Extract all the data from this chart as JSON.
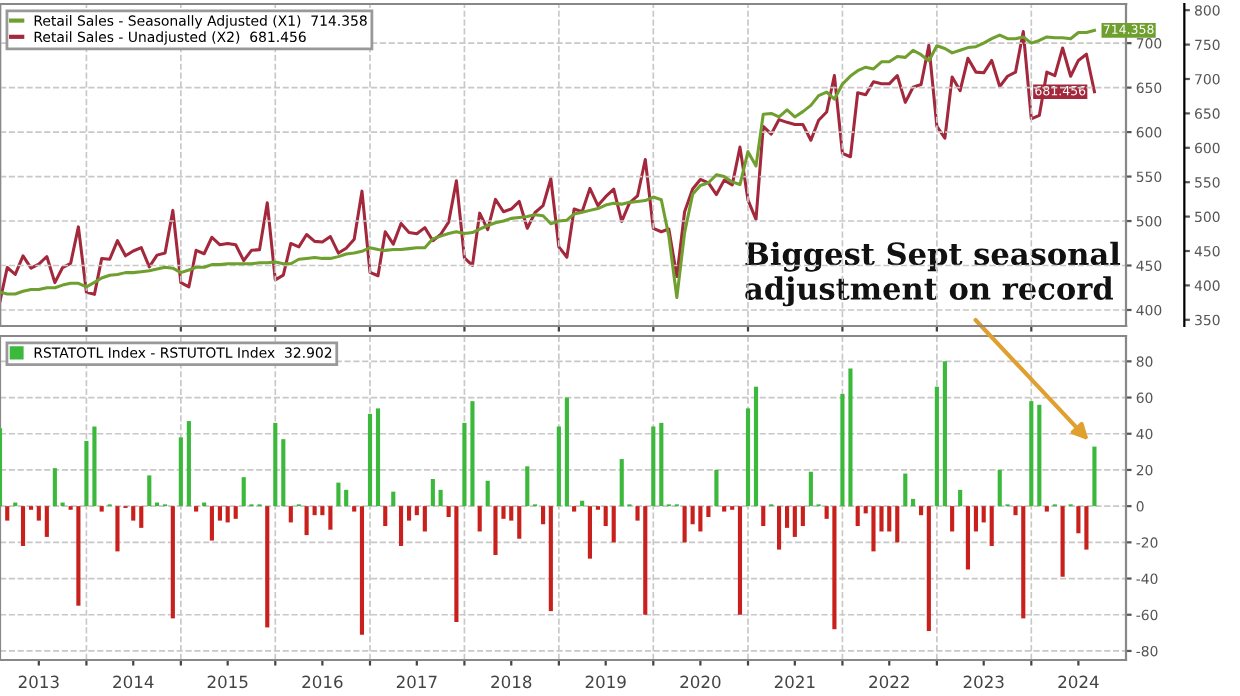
{
  "chart_data": [
    {
      "type": "line",
      "x": [
        "2013-02",
        "2013-03",
        "2013-04",
        "2013-05",
        "2013-06",
        "2013-07",
        "2013-08",
        "2013-09",
        "2013-10",
        "2013-11",
        "2013-12",
        "2014-01",
        "2014-02",
        "2014-03",
        "2014-04",
        "2014-05",
        "2014-06",
        "2014-07",
        "2014-08",
        "2014-09",
        "2014-10",
        "2014-11",
        "2014-12",
        "2015-01",
        "2015-02",
        "2015-03",
        "2015-04",
        "2015-05",
        "2015-06",
        "2015-07",
        "2015-08",
        "2015-09",
        "2015-10",
        "2015-11",
        "2015-12",
        "2016-01",
        "2016-02",
        "2016-03",
        "2016-04",
        "2016-05",
        "2016-06",
        "2016-07",
        "2016-08",
        "2016-09",
        "2016-10",
        "2016-11",
        "2016-12",
        "2017-01",
        "2017-02",
        "2017-03",
        "2017-04",
        "2017-05",
        "2017-06",
        "2017-07",
        "2017-08",
        "2017-09",
        "2017-10",
        "2017-11",
        "2017-12",
        "2018-01",
        "2018-02",
        "2018-03",
        "2018-04",
        "2018-05",
        "2018-06",
        "2018-07",
        "2018-08",
        "2018-09",
        "2018-10",
        "2018-11",
        "2018-12",
        "2019-01",
        "2019-02",
        "2019-03",
        "2019-04",
        "2019-05",
        "2019-06",
        "2019-07",
        "2019-08",
        "2019-09",
        "2019-10",
        "2019-11",
        "2019-12",
        "2020-01",
        "2020-02",
        "2020-03",
        "2020-04",
        "2020-05",
        "2020-06",
        "2020-07",
        "2020-08",
        "2020-09",
        "2020-10",
        "2020-11",
        "2020-12",
        "2021-01",
        "2021-02",
        "2021-03",
        "2021-04",
        "2021-05",
        "2021-06",
        "2021-07",
        "2021-08",
        "2021-09",
        "2021-10",
        "2021-11",
        "2021-12",
        "2022-01",
        "2022-02",
        "2022-03",
        "2022-04",
        "2022-05",
        "2022-06",
        "2022-07",
        "2022-08",
        "2022-09",
        "2022-10",
        "2022-11",
        "2022-12",
        "2023-01",
        "2023-02",
        "2023-03",
        "2023-04",
        "2023-05",
        "2023-06",
        "2023-07",
        "2023-08",
        "2023-09",
        "2023-10",
        "2023-11",
        "2023-12",
        "2024-01",
        "2024-02",
        "2024-03",
        "2024-04",
        "2024-05",
        "2024-06",
        "2024-07",
        "2024-08",
        "2024-09"
      ],
      "series": [
        {
          "name": "Retail Sales - Seasonally Adjusted (X1)  714.358",
          "color": "#6f9f2f",
          "axis": "y",
          "values": [
            420,
            418,
            418,
            421,
            423,
            423,
            425,
            425,
            428,
            430,
            430,
            426,
            431,
            436,
            439,
            440,
            442,
            442,
            443,
            444,
            446,
            448,
            447,
            442,
            445,
            448,
            448,
            451,
            451,
            452,
            452,
            452,
            452,
            453,
            453,
            454,
            452,
            452,
            457,
            458,
            459,
            458,
            458,
            460,
            463,
            464,
            466,
            470,
            468,
            467,
            468,
            468,
            469,
            470,
            470,
            480,
            483,
            486,
            488,
            486,
            487,
            491,
            495,
            498,
            500,
            503,
            504,
            505,
            507,
            506,
            497,
            500,
            501,
            508,
            510,
            512,
            514,
            518,
            520,
            519,
            521,
            522,
            523,
            527,
            524,
            483,
            414,
            487,
            530,
            540,
            543,
            552,
            550,
            544,
            541,
            578,
            562,
            620,
            621,
            617,
            625,
            617,
            623,
            630,
            641,
            645,
            637,
            654,
            663,
            669,
            673,
            671,
            679,
            679,
            685,
            684,
            692,
            687,
            680,
            697,
            694,
            689,
            692,
            695,
            696,
            700,
            705,
            709,
            705,
            705,
            707,
            700,
            703,
            707,
            706,
            706,
            705,
            712,
            712,
            714.358
          ],
          "value_labels": [
            null,
            null,
            null,
            null,
            null,
            null,
            null,
            null,
            null,
            null,
            null,
            null,
            null,
            null,
            null,
            null,
            null,
            null,
            null,
            null,
            null,
            null,
            null,
            null,
            null,
            null,
            null,
            null,
            null,
            null,
            null,
            null,
            null,
            null,
            null,
            null,
            null,
            null,
            null,
            null,
            null,
            null,
            null,
            null,
            null,
            null,
            null,
            null,
            null,
            null,
            null,
            null,
            null,
            null,
            null,
            null,
            null,
            null,
            null,
            null,
            null,
            null,
            null,
            null,
            null,
            null,
            null,
            null,
            null,
            null,
            null,
            null,
            null,
            null,
            null,
            null,
            null,
            null,
            null,
            null,
            null,
            null,
            null,
            null,
            null,
            null,
            null,
            null,
            null,
            null,
            null,
            null,
            null,
            null,
            null,
            null,
            null,
            null,
            null,
            null,
            null,
            null,
            null,
            null,
            null,
            null,
            null,
            null,
            null,
            null,
            null,
            null,
            null,
            null,
            null,
            null,
            null,
            null,
            null,
            null,
            null,
            null,
            null,
            null,
            null,
            null,
            null,
            null,
            null,
            null,
            null,
            null,
            null,
            null,
            null,
            null,
            null,
            null,
            null,
            "714.358"
          ]
        },
        {
          "name": "Retail Sales - Unadjusted (X2)  681.456",
          "color": "#a3283c",
          "axis": "y2",
          "values": [
            377,
            426,
            416,
            443,
            425,
            431,
            442,
            404,
            426,
            432,
            485,
            390,
            387,
            439,
            438,
            465,
            443,
            450,
            455,
            427,
            444,
            447,
            509,
            404,
            398,
            451,
            446,
            470,
            459,
            461,
            459,
            436,
            451,
            452,
            520,
            408,
            415,
            461,
            456,
            474,
            464,
            463,
            471,
            447,
            454,
            467,
            537,
            419,
            414,
            478,
            460,
            490,
            477,
            475,
            484,
            465,
            474,
            492,
            552,
            440,
            429,
            505,
            481,
            525,
            507,
            511,
            522,
            483,
            506,
            516,
            555,
            456,
            441,
            511,
            507,
            541,
            516,
            529,
            540,
            493,
            520,
            530,
            583,
            483,
            478,
            482,
            413,
            507,
            540,
            554,
            549,
            532,
            553,
            546,
            601,
            524,
            496,
            631,
            620,
            641,
            637,
            634,
            634,
            611,
            640,
            652,
            705,
            592,
            587,
            680,
            677,
            696,
            693,
            693,
            705,
            666,
            688,
            692,
            749,
            631,
            614,
            703,
            683,
            730,
            710,
            709,
            727,
            689,
            704,
            710,
            769,
            642,
            647,
            710,
            705,
            745,
            704,
            727,
            736,
            681.456
          ],
          "value_labels": [
            null,
            null,
            null,
            null,
            null,
            null,
            null,
            null,
            null,
            null,
            null,
            null,
            null,
            null,
            null,
            null,
            null,
            null,
            null,
            null,
            null,
            null,
            null,
            null,
            null,
            null,
            null,
            null,
            null,
            null,
            null,
            null,
            null,
            null,
            null,
            null,
            null,
            null,
            null,
            null,
            null,
            null,
            null,
            null,
            null,
            null,
            null,
            null,
            null,
            null,
            null,
            null,
            null,
            null,
            null,
            null,
            null,
            null,
            null,
            null,
            null,
            null,
            null,
            null,
            null,
            null,
            null,
            null,
            null,
            null,
            null,
            null,
            null,
            null,
            null,
            null,
            null,
            null,
            null,
            null,
            null,
            null,
            null,
            null,
            null,
            null,
            null,
            null,
            null,
            null,
            null,
            null,
            null,
            null,
            null,
            null,
            null,
            null,
            null,
            null,
            null,
            null,
            null,
            null,
            null,
            null,
            null,
            null,
            null,
            null,
            null,
            null,
            null,
            null,
            null,
            null,
            null,
            null,
            null,
            null,
            null,
            null,
            null,
            null,
            null,
            null,
            null,
            null,
            null,
            null,
            null,
            null,
            null,
            null,
            null,
            null,
            null,
            null,
            null,
            "681.456"
          ]
        }
      ],
      "xlim": [
        "2013-02-01",
        "2025-01-01"
      ],
      "xticks": [
        {
          "value": "2014-01-01",
          "label": null
        },
        {
          "value": "2015-01-01",
          "label": null
        },
        {
          "value": "2016-01-01",
          "label": null
        },
        {
          "value": "2017-01-01",
          "label": null
        },
        {
          "value": "2018-01-01",
          "label": null
        },
        {
          "value": "2019-01-01",
          "label": null
        },
        {
          "value": "2020-01-01",
          "label": null
        },
        {
          "value": "2021-01-01",
          "label": null
        },
        {
          "value": "2022-01-01",
          "label": null
        },
        {
          "value": "2023-01-01",
          "label": null
        },
        {
          "value": "2024-01-01",
          "label": null
        }
      ],
      "tick_labels": "y",
      "ylim": [
        382,
        744
      ],
      "yticks": [
        400,
        450,
        500,
        550,
        600,
        650,
        700
      ],
      "y2lim": [
        341,
        809
      ],
      "y2ticks": [
        350,
        400,
        450,
        500,
        550,
        600,
        650,
        700,
        750,
        800
      ],
      "grid": true,
      "legend": "top left"
    },
    {
      "type": "bar",
      "x": [
        "2013-02",
        "2013-03",
        "2013-04",
        "2013-05",
        "2013-06",
        "2013-07",
        "2013-08",
        "2013-09",
        "2013-10",
        "2013-11",
        "2013-12",
        "2014-01",
        "2014-02",
        "2014-03",
        "2014-04",
        "2014-05",
        "2014-06",
        "2014-07",
        "2014-08",
        "2014-09",
        "2014-10",
        "2014-11",
        "2014-12",
        "2015-01",
        "2015-02",
        "2015-03",
        "2015-04",
        "2015-05",
        "2015-06",
        "2015-07",
        "2015-08",
        "2015-09",
        "2015-10",
        "2015-11",
        "2015-12",
        "2016-01",
        "2016-02",
        "2016-03",
        "2016-04",
        "2016-05",
        "2016-06",
        "2016-07",
        "2016-08",
        "2016-09",
        "2016-10",
        "2016-11",
        "2016-12",
        "2017-01",
        "2017-02",
        "2017-03",
        "2017-04",
        "2017-05",
        "2017-06",
        "2017-07",
        "2017-08",
        "2017-09",
        "2017-10",
        "2017-11",
        "2017-12",
        "2018-01",
        "2018-02",
        "2018-03",
        "2018-04",
        "2018-05",
        "2018-06",
        "2018-07",
        "2018-08",
        "2018-09",
        "2018-10",
        "2018-11",
        "2018-12",
        "2019-01",
        "2019-02",
        "2019-03",
        "2019-04",
        "2019-05",
        "2019-06",
        "2019-07",
        "2019-08",
        "2019-09",
        "2019-10",
        "2019-11",
        "2019-12",
        "2020-01",
        "2020-02",
        "2020-03",
        "2020-04",
        "2020-05",
        "2020-06",
        "2020-07",
        "2020-08",
        "2020-09",
        "2020-10",
        "2020-11",
        "2020-12",
        "2021-01",
        "2021-02",
        "2021-03",
        "2021-04",
        "2021-05",
        "2021-06",
        "2021-07",
        "2021-08",
        "2021-09",
        "2021-10",
        "2021-11",
        "2021-12",
        "2022-01",
        "2022-02",
        "2022-03",
        "2022-04",
        "2022-05",
        "2022-06",
        "2022-07",
        "2022-08",
        "2022-09",
        "2022-10",
        "2022-11",
        "2022-12",
        "2023-01",
        "2023-02",
        "2023-03",
        "2023-04",
        "2023-05",
        "2023-06",
        "2023-07",
        "2023-08",
        "2023-09",
        "2023-10",
        "2023-11",
        "2023-12",
        "2024-01",
        "2024-02",
        "2024-03",
        "2024-04",
        "2024-05",
        "2024-06",
        "2024-07",
        "2024-08",
        "2024-09"
      ],
      "series": [
        {
          "name": "RSTATOTL Index - RSTUTOTL Index  32.902",
          "color": "#3cb83c",
          "values": [
            43,
            -8,
            2,
            -22,
            -2,
            -8,
            -17,
            21,
            2,
            -2,
            -55,
            36,
            44,
            -3,
            1,
            -25,
            -1,
            -8,
            -12,
            17,
            2,
            1,
            -62,
            38,
            47,
            -3,
            2,
            -19,
            -8,
            -9,
            -7,
            16,
            1,
            1,
            -67,
            46,
            37,
            -9,
            1,
            -16,
            -5,
            -5,
            -13,
            13,
            9,
            -3,
            -71,
            51,
            54,
            -11,
            8,
            -22,
            -8,
            -5,
            -14,
            15,
            9,
            -6,
            -64,
            46,
            58,
            -14,
            14,
            -27,
            -7,
            -8,
            -18,
            22,
            1,
            -10,
            -58,
            44,
            60,
            -3,
            3,
            -29,
            -2,
            -11,
            -20,
            26,
            1,
            -8,
            -60,
            44,
            46,
            1,
            1,
            -20,
            -10,
            -14,
            -6,
            20,
            -3,
            -2,
            -60,
            54,
            66,
            -11,
            1,
            -24,
            -12,
            -17,
            -11,
            19,
            1,
            -7,
            -68,
            62,
            76,
            -11,
            -4,
            -25,
            -14,
            -14,
            -20,
            18,
            4,
            -5,
            -69,
            66,
            80,
            -14,
            9,
            -35,
            -14,
            -9,
            -22,
            20,
            1,
            -5,
            -62,
            58,
            56,
            -3,
            1,
            -39,
            1,
            -15,
            -24,
            32.902
          ],
          "colors": [
            "#3cb83c",
            "#c8201c",
            "#3cb83c",
            "#c8201c",
            "#c8201c",
            "#c8201c",
            "#c8201c",
            "#3cb83c",
            "#3cb83c",
            "#c8201c",
            "#c8201c",
            "#3cb83c",
            "#3cb83c",
            "#c8201c",
            "#3cb83c",
            "#c8201c",
            "#c8201c",
            "#c8201c",
            "#c8201c",
            "#3cb83c",
            "#3cb83c",
            "#3cb83c",
            "#c8201c",
            "#3cb83c",
            "#3cb83c",
            "#c8201c",
            "#3cb83c",
            "#c8201c",
            "#c8201c",
            "#c8201c",
            "#c8201c",
            "#3cb83c",
            "#3cb83c",
            "#3cb83c",
            "#c8201c",
            "#3cb83c",
            "#3cb83c",
            "#c8201c",
            "#3cb83c",
            "#c8201c",
            "#c8201c",
            "#c8201c",
            "#c8201c",
            "#3cb83c",
            "#3cb83c",
            "#c8201c",
            "#c8201c",
            "#3cb83c",
            "#3cb83c",
            "#c8201c",
            "#3cb83c",
            "#c8201c",
            "#c8201c",
            "#c8201c",
            "#c8201c",
            "#3cb83c",
            "#3cb83c",
            "#c8201c",
            "#c8201c",
            "#3cb83c",
            "#3cb83c",
            "#c8201c",
            "#3cb83c",
            "#c8201c",
            "#c8201c",
            "#c8201c",
            "#c8201c",
            "#3cb83c",
            "#3cb83c",
            "#c8201c",
            "#c8201c",
            "#3cb83c",
            "#3cb83c",
            "#c8201c",
            "#3cb83c",
            "#c8201c",
            "#c8201c",
            "#c8201c",
            "#c8201c",
            "#3cb83c",
            "#3cb83c",
            "#c8201c",
            "#c8201c",
            "#3cb83c",
            "#3cb83c",
            "#3cb83c",
            "#3cb83c",
            "#c8201c",
            "#c8201c",
            "#c8201c",
            "#c8201c",
            "#3cb83c",
            "#c8201c",
            "#c8201c",
            "#c8201c",
            "#3cb83c",
            "#3cb83c",
            "#c8201c",
            "#3cb83c",
            "#c8201c",
            "#c8201c",
            "#c8201c",
            "#c8201c",
            "#3cb83c",
            "#3cb83c",
            "#c8201c",
            "#c8201c",
            "#3cb83c",
            "#3cb83c",
            "#c8201c",
            "#c8201c",
            "#c8201c",
            "#c8201c",
            "#c8201c",
            "#c8201c",
            "#3cb83c",
            "#3cb83c",
            "#c8201c",
            "#c8201c",
            "#3cb83c",
            "#3cb83c",
            "#c8201c",
            "#3cb83c",
            "#c8201c",
            "#c8201c",
            "#c8201c",
            "#c8201c",
            "#3cb83c",
            "#3cb83c",
            "#c8201c",
            "#c8201c",
            "#3cb83c",
            "#3cb83c",
            "#c8201c",
            "#3cb83c",
            "#c8201c",
            "#3cb83c",
            "#c8201c",
            "#c8201c",
            "#3cb83c"
          ]
        }
      ],
      "xlim": [
        "2013-02-01",
        "2025-01-01"
      ],
      "xticks": [
        {
          "value": "2013-07-01",
          "label": "2013"
        },
        {
          "value": "2014-01-01",
          "label": null
        },
        {
          "value": "2014-07-01",
          "label": "2014"
        },
        {
          "value": "2015-01-01",
          "label": null
        },
        {
          "value": "2015-07-01",
          "label": "2015"
        },
        {
          "value": "2016-01-01",
          "label": null
        },
        {
          "value": "2016-07-01",
          "label": "2016"
        },
        {
          "value": "2017-01-01",
          "label": null
        },
        {
          "value": "2017-07-01",
          "label": "2017"
        },
        {
          "value": "2018-01-01",
          "label": null
        },
        {
          "value": "2018-07-01",
          "label": "2018"
        },
        {
          "value": "2019-01-01",
          "label": null
        },
        {
          "value": "2019-07-01",
          "label": "2019"
        },
        {
          "value": "2020-01-01",
          "label": null
        },
        {
          "value": "2020-07-01",
          "label": "2020"
        },
        {
          "value": "2021-01-01",
          "label": null
        },
        {
          "value": "2021-07-01",
          "label": "2021"
        },
        {
          "value": "2022-01-01",
          "label": null
        },
        {
          "value": "2022-07-01",
          "label": "2022"
        },
        {
          "value": "2023-01-01",
          "label": null
        },
        {
          "value": "2023-07-01",
          "label": "2023"
        },
        {
          "value": "2024-01-01",
          "label": null
        },
        {
          "value": "2024-07-01",
          "label": "2024"
        }
      ],
      "ylim": [
        -85,
        94
      ],
      "yticks": [
        -80,
        -60,
        -40,
        -20,
        0,
        20,
        40,
        60,
        80
      ],
      "grid": true,
      "legend": "top left",
      "annotations": [
        {
          "text": "Biggest Sept seasonal\nadjustment on record",
          "x": "2024-09",
          "y": 32.902
        }
      ]
    }
  ]
}
